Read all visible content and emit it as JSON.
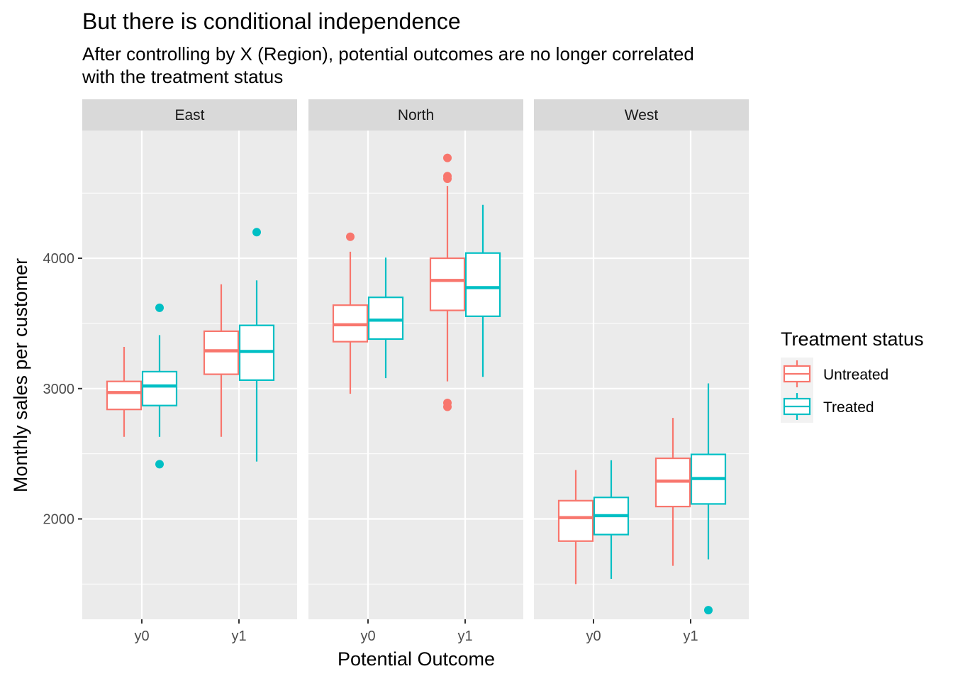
{
  "chart_data": {
    "type": "boxplot",
    "title": "But there is conditional independence",
    "subtitle_lines": [
      "After controlling by X (Region), potential outcomes are no longer correlated",
      "with the treatment status"
    ],
    "xlabel": "Potential Outcome",
    "ylabel": "Monthly sales per customer",
    "ylim": [
      1230,
      4980
    ],
    "y_ticks": [
      2000,
      3000,
      4000
    ],
    "grid": true,
    "legend": {
      "title": "Treatment status",
      "position": "right",
      "entries": [
        {
          "label": "Untreated",
          "color": "#F8766D"
        },
        {
          "label": "Treated",
          "color": "#00BFC4"
        }
      ]
    },
    "categories": [
      "y0",
      "y1"
    ],
    "facets": [
      {
        "name": "East",
        "groups": [
          {
            "x": "y0",
            "series": "Untreated",
            "min": 2630,
            "q1": 2840,
            "median": 2970,
            "q3": 3055,
            "max": 3320,
            "outliers": []
          },
          {
            "x": "y0",
            "series": "Treated",
            "min": 2630,
            "q1": 2870,
            "median": 3020,
            "q3": 3130,
            "max": 3410,
            "outliers": [
              3620,
              2420
            ]
          },
          {
            "x": "y1",
            "series": "Untreated",
            "min": 2630,
            "q1": 3110,
            "median": 3290,
            "q3": 3440,
            "max": 3800,
            "outliers": []
          },
          {
            "x": "y1",
            "series": "Treated",
            "min": 2440,
            "q1": 3065,
            "median": 3285,
            "q3": 3485,
            "max": 3830,
            "outliers": [
              4200
            ]
          }
        ]
      },
      {
        "name": "North",
        "groups": [
          {
            "x": "y0",
            "series": "Untreated",
            "min": 2960,
            "q1": 3360,
            "median": 3490,
            "q3": 3640,
            "max": 4050,
            "outliers": [
              4165
            ]
          },
          {
            "x": "y0",
            "series": "Treated",
            "min": 3080,
            "q1": 3380,
            "median": 3525,
            "q3": 3700,
            "max": 4005,
            "outliers": []
          },
          {
            "x": "y1",
            "series": "Untreated",
            "min": 3055,
            "q1": 3600,
            "median": 3830,
            "q3": 4000,
            "max": 4555,
            "outliers": [
              4770,
              4630,
              4610,
              2890,
              2860
            ]
          },
          {
            "x": "y1",
            "series": "Treated",
            "min": 3090,
            "q1": 3555,
            "median": 3775,
            "q3": 4040,
            "max": 4410,
            "outliers": []
          }
        ]
      },
      {
        "name": "West",
        "groups": [
          {
            "x": "y0",
            "series": "Untreated",
            "min": 1500,
            "q1": 1830,
            "median": 2010,
            "q3": 2140,
            "max": 2375,
            "outliers": []
          },
          {
            "x": "y0",
            "series": "Treated",
            "min": 1540,
            "q1": 1880,
            "median": 2025,
            "q3": 2165,
            "max": 2450,
            "outliers": []
          },
          {
            "x": "y1",
            "series": "Untreated",
            "min": 1640,
            "q1": 2095,
            "median": 2290,
            "q3": 2465,
            "max": 2775,
            "outliers": []
          },
          {
            "x": "y1",
            "series": "Treated",
            "min": 1690,
            "q1": 2115,
            "median": 2310,
            "q3": 2495,
            "max": 3040,
            "outliers": [
              1300
            ]
          }
        ]
      }
    ]
  }
}
